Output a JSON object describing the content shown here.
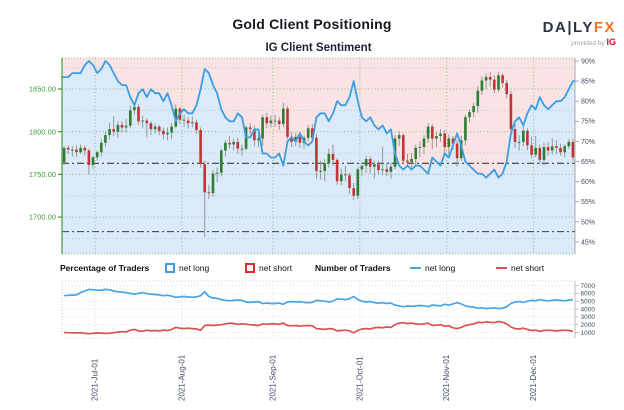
{
  "header": {
    "title": "Gold Client Positioning",
    "logo": {
      "daily": "DA|LY",
      "fx": "FX",
      "provided": "provided by",
      "ig": "IG"
    }
  },
  "subtitle": "IG Client Sentiment",
  "legend": {
    "pct_title": "Percentage of Traders",
    "num_title": "Number of Traders",
    "long_label": "net long",
    "short_label": "net short"
  },
  "colors": {
    "pink_fill": "#f9e3e4",
    "blue_fill": "#daeaf8",
    "sentiment_line": "#3d9de0",
    "candle_up": "#2e7d32",
    "candle_down": "#c43333",
    "wick": "#8f8f8f",
    "grid_green": "rgba(74,158,74,0.6)",
    "grid_green_minor": "rgba(74,158,74,0.32)",
    "axis_green": "#3d9c3d",
    "axis_text_green": "#3d9c3d",
    "axis_text_dark": "#424d66",
    "ref_line": "#3c3c3c",
    "lower_blue": "#4aa3e3",
    "lower_red": "#d9534f",
    "lower_grid": "#cdd1d8",
    "lower_axis": "#b5bac2",
    "right_axis": "#9aa0a8"
  },
  "chart_data": [
    {
      "type": "candlestick+area-line",
      "title": "IG Client Sentiment",
      "price_axis": {
        "tick_labels": [
          "1850.00",
          "1800.00",
          "1750.00",
          "1700.00"
        ],
        "tick_values": [
          1850,
          1800,
          1750,
          1700
        ],
        "minor_values": [
          1875,
          1825,
          1775,
          1725,
          1675
        ],
        "range": [
          1657,
          1886
        ]
      },
      "pct_axis": {
        "tick_values": [
          90,
          85,
          80,
          75,
          70,
          65,
          60,
          55,
          50,
          45
        ],
        "suffix": "%",
        "range": [
          42,
          91
        ]
      },
      "reference_lines": [
        1763,
        1683
      ],
      "months": [
        {
          "label": "2021-Jul-01",
          "index": 7.5
        },
        {
          "label": "2021-Aug-01",
          "index": 28.5
        },
        {
          "label": "2021-Sep-01",
          "index": 50.5
        },
        {
          "label": "2021-Oct-01",
          "index": 71.5
        },
        {
          "label": "2021-Nov-01",
          "index": 92.5
        },
        {
          "label": "2021-Dec-01",
          "index": 113.5
        }
      ],
      "candles": [
        [
          1764,
          1783,
          1761,
          1781
        ],
        [
          1781,
          1784,
          1774,
          1779
        ],
        [
          1779,
          1783,
          1771,
          1779
        ],
        [
          1779,
          1784,
          1771,
          1776
        ],
        [
          1776,
          1785,
          1774,
          1781
        ],
        [
          1781,
          1784,
          1772,
          1778
        ],
        [
          1778,
          1780,
          1750,
          1761
        ],
        [
          1761,
          1772,
          1756,
          1770
        ],
        [
          1770,
          1778,
          1766,
          1776
        ],
        [
          1776,
          1791,
          1771,
          1787
        ],
        [
          1787,
          1800,
          1782,
          1796
        ],
        [
          1796,
          1810,
          1791,
          1803
        ],
        [
          1803,
          1818,
          1795,
          1800
        ],
        [
          1800,
          1812,
          1793,
          1808
        ],
        [
          1808,
          1812,
          1799,
          1805
        ],
        [
          1805,
          1815,
          1799,
          1807
        ],
        [
          1807,
          1831,
          1804,
          1825
        ],
        [
          1825,
          1834,
          1820,
          1829
        ],
        [
          1829,
          1832,
          1808,
          1812
        ],
        [
          1812,
          1819,
          1804,
          1813
        ],
        [
          1813,
          1815,
          1794,
          1810
        ],
        [
          1810,
          1812,
          1796,
          1803
        ],
        [
          1803,
          1810,
          1798,
          1806
        ],
        [
          1806,
          1808,
          1796,
          1801
        ],
        [
          1801,
          1805,
          1791,
          1797
        ],
        [
          1797,
          1805,
          1790,
          1799
        ],
        [
          1799,
          1810,
          1791,
          1806
        ],
        [
          1806,
          1832,
          1804,
          1827
        ],
        [
          1827,
          1829,
          1809,
          1814
        ],
        [
          1814,
          1820,
          1806,
          1813
        ],
        [
          1813,
          1817,
          1804,
          1810
        ],
        [
          1810,
          1818,
          1805,
          1811
        ],
        [
          1811,
          1814,
          1797,
          1802
        ],
        [
          1802,
          1805,
          1758,
          1763
        ],
        [
          1762,
          1766,
          1677,
          1729
        ],
        [
          1729,
          1738,
          1721,
          1728
        ],
        [
          1728,
          1755,
          1724,
          1751
        ],
        [
          1751,
          1758,
          1741,
          1752
        ],
        [
          1752,
          1780,
          1748,
          1778
        ],
        [
          1778,
          1790,
          1771,
          1787
        ],
        [
          1787,
          1795,
          1780,
          1785
        ],
        [
          1785,
          1792,
          1778,
          1788
        ],
        [
          1788,
          1793,
          1774,
          1780
        ],
        [
          1780,
          1785,
          1772,
          1780
        ],
        [
          1780,
          1807,
          1778,
          1805
        ],
        [
          1805,
          1810,
          1797,
          1803
        ],
        [
          1803,
          1807,
          1783,
          1790
        ],
        [
          1790,
          1798,
          1782,
          1792
        ],
        [
          1792,
          1820,
          1783,
          1817
        ],
        [
          1817,
          1822,
          1804,
          1810
        ],
        [
          1810,
          1819,
          1805,
          1813
        ],
        [
          1813,
          1820,
          1806,
          1813
        ],
        [
          1813,
          1817,
          1802,
          1809
        ],
        [
          1809,
          1834,
          1805,
          1827
        ],
        [
          1827,
          1830,
          1791,
          1794
        ],
        [
          1794,
          1800,
          1782,
          1788
        ],
        [
          1788,
          1799,
          1783,
          1794
        ],
        [
          1794,
          1800,
          1781,
          1787
        ],
        [
          1787,
          1796,
          1780,
          1793
        ],
        [
          1793,
          1808,
          1789,
          1804
        ],
        [
          1804,
          1809,
          1788,
          1793
        ],
        [
          1793,
          1797,
          1745,
          1754
        ],
        [
          1754,
          1766,
          1744,
          1754
        ],
        [
          1754,
          1768,
          1742,
          1763
        ],
        [
          1763,
          1780,
          1758,
          1774
        ],
        [
          1774,
          1785,
          1760,
          1767
        ],
        [
          1767,
          1769,
          1738,
          1742
        ],
        [
          1742,
          1757,
          1737,
          1750
        ],
        [
          1750,
          1760,
          1742,
          1749
        ],
        [
          1749,
          1752,
          1727,
          1734
        ],
        [
          1734,
          1740,
          1720,
          1725
        ],
        [
          1725,
          1758,
          1721,
          1756
        ],
        [
          1756,
          1765,
          1748,
          1760
        ],
        [
          1760,
          1772,
          1752,
          1768
        ],
        [
          1768,
          1771,
          1751,
          1759
        ],
        [
          1759,
          1766,
          1745,
          1762
        ],
        [
          1762,
          1766,
          1750,
          1755
        ],
        [
          1755,
          1782,
          1749,
          1756
        ],
        [
          1756,
          1763,
          1748,
          1753
        ],
        [
          1753,
          1764,
          1745,
          1759
        ],
        [
          1759,
          1796,
          1756,
          1792
        ],
        [
          1792,
          1801,
          1783,
          1796
        ],
        [
          1796,
          1798,
          1762,
          1766
        ],
        [
          1766,
          1774,
          1759,
          1764
        ],
        [
          1764,
          1775,
          1758,
          1768
        ],
        [
          1768,
          1785,
          1760,
          1781
        ],
        [
          1781,
          1789,
          1770,
          1782
        ],
        [
          1782,
          1796,
          1774,
          1792
        ],
        [
          1792,
          1810,
          1787,
          1806
        ],
        [
          1806,
          1809,
          1780,
          1792
        ],
        [
          1792,
          1800,
          1782,
          1795
        ],
        [
          1795,
          1803,
          1788,
          1798
        ],
        [
          1798,
          1802,
          1772,
          1782
        ],
        [
          1782,
          1797,
          1772,
          1792
        ],
        [
          1792,
          1795,
          1779,
          1786
        ],
        [
          1786,
          1790,
          1759,
          1769
        ],
        [
          1769,
          1795,
          1766,
          1790
        ],
        [
          1790,
          1820,
          1784,
          1817
        ],
        [
          1817,
          1826,
          1811,
          1823
        ],
        [
          1823,
          1834,
          1817,
          1830
        ],
        [
          1830,
          1853,
          1822,
          1848
        ],
        [
          1848,
          1865,
          1843,
          1860
        ],
        [
          1860,
          1868,
          1850,
          1864
        ],
        [
          1864,
          1870,
          1852,
          1861
        ],
        [
          1861,
          1866,
          1845,
          1849
        ],
        [
          1849,
          1870,
          1846,
          1866
        ],
        [
          1866,
          1868,
          1852,
          1857
        ],
        [
          1857,
          1861,
          1839,
          1844
        ],
        [
          1844,
          1848,
          1795,
          1803
        ],
        [
          1803,
          1810,
          1781,
          1788
        ],
        [
          1788,
          1796,
          1778,
          1788
        ],
        [
          1788,
          1808,
          1783,
          1801
        ],
        [
          1801,
          1804,
          1778,
          1784
        ],
        [
          1784,
          1794,
          1769,
          1773
        ],
        [
          1773,
          1795,
          1770,
          1781
        ],
        [
          1781,
          1785,
          1762,
          1767
        ],
        [
          1767,
          1787,
          1761,
          1782
        ],
        [
          1782,
          1788,
          1772,
          1778
        ],
        [
          1778,
          1792,
          1773,
          1783
        ],
        [
          1783,
          1790,
          1774,
          1781
        ],
        [
          1781,
          1786,
          1772,
          1776
        ],
        [
          1776,
          1785,
          1770,
          1783
        ],
        [
          1783,
          1791,
          1780,
          1788
        ],
        [
          1788,
          1792,
          1766,
          1770
        ]
      ],
      "net_long_pct": [
        86,
        86,
        87,
        87,
        87,
        89,
        90,
        89,
        87,
        88,
        90,
        89,
        87,
        85,
        84,
        84,
        81,
        79,
        82,
        83,
        81,
        83,
        82,
        82,
        80,
        82,
        79,
        75,
        77,
        78,
        77,
        77,
        79,
        83,
        88,
        87,
        84,
        82,
        78,
        76,
        75,
        75,
        77,
        76,
        71,
        71,
        73,
        73,
        67,
        67,
        66,
        66,
        67,
        64,
        70,
        71,
        70,
        72,
        70,
        69,
        70,
        76,
        77,
        77,
        75,
        77,
        80,
        79,
        79,
        81,
        85,
        80,
        76,
        75,
        76,
        74,
        73,
        74,
        72,
        73,
        67,
        64,
        63,
        64,
        63,
        64,
        64,
        63,
        62,
        66,
        65,
        64,
        67,
        66,
        69,
        72,
        69,
        65,
        64,
        63,
        62,
        62,
        61,
        62,
        63,
        61,
        62,
        65,
        72,
        75,
        76,
        74,
        77,
        79,
        78,
        81,
        79,
        78,
        79,
        80,
        80,
        81,
        83,
        85
      ]
    },
    {
      "type": "line",
      "y_axis": {
        "tick_values": [
          7000,
          6000,
          5000,
          4000,
          3000,
          2000,
          1000
        ],
        "range": [
          0,
          7500
        ]
      },
      "series": [
        {
          "name": "net long",
          "values": [
            5700,
            5750,
            5780,
            5800,
            6100,
            6300,
            6500,
            6450,
            6400,
            6420,
            6500,
            6450,
            6300,
            6200,
            6150,
            6100,
            6000,
            5900,
            6000,
            6100,
            5950,
            5900,
            5850,
            5800,
            5700,
            5750,
            5650,
            5500,
            5550,
            5600,
            5550,
            5500,
            5550,
            5700,
            6200,
            5600,
            5400,
            5350,
            5200,
            5100,
            5050,
            5100,
            5150,
            5100,
            4900,
            4850,
            4900,
            4950,
            4700,
            4750,
            4700,
            4700,
            4750,
            4600,
            4900,
            4950,
            4900,
            4950,
            4850,
            4800,
            4850,
            5100,
            5050,
            5000,
            4900,
            5000,
            5300,
            5250,
            5200,
            5300,
            5600,
            5200,
            5000,
            4900,
            4950,
            4800,
            4750,
            4800,
            4700,
            4750,
            4500,
            4400,
            4300,
            4400,
            4350,
            4400,
            4450,
            4400,
            4300,
            4500,
            4450,
            4400,
            4600,
            4500,
            4650,
            4800,
            4650,
            4400,
            4300,
            4250,
            4100,
            4150,
            4050,
            4100,
            4150,
            4050,
            4100,
            4300,
            4700,
            4900,
            4950,
            4850,
            5000,
            5100,
            5050,
            5200,
            5100,
            5050,
            5100,
            5150,
            5100,
            5050,
            5150,
            5200
          ]
        },
        {
          "name": "net short",
          "values": [
            1000,
            980,
            960,
            950,
            980,
            900,
            850,
            900,
            950,
            920,
            880,
            900,
            980,
            1050,
            1100,
            1080,
            1300,
            1400,
            1200,
            1150,
            1300,
            1200,
            1250,
            1200,
            1300,
            1250,
            1400,
            1650,
            1550,
            1500,
            1550,
            1500,
            1450,
            1300,
            1900,
            1950,
            1900,
            1950,
            2000,
            2100,
            2200,
            2150,
            2050,
            2100,
            2050,
            2000,
            1950,
            1900,
            2100,
            2050,
            2100,
            2100,
            2050,
            2200,
            1900,
            1850,
            1900,
            1800,
            1850,
            1900,
            1850,
            1500,
            1450,
            1400,
            1500,
            1450,
            1200,
            1250,
            1300,
            1200,
            950,
            1250,
            1450,
            1500,
            1450,
            1600,
            1650,
            1600,
            1700,
            1650,
            2000,
            2200,
            2250,
            2150,
            2200,
            2100,
            2050,
            2100,
            2200,
            1900,
            1950,
            2000,
            1800,
            1850,
            1600,
            1500,
            1650,
            1900,
            2000,
            2100,
            2300,
            2250,
            2350,
            2300,
            2250,
            2400,
            2300,
            2100,
            1700,
            1500,
            1450,
            1550,
            1400,
            1250,
            1300,
            1150,
            1250,
            1300,
            1250,
            1200,
            1250,
            1300,
            1250,
            1150
          ]
        }
      ]
    }
  ]
}
